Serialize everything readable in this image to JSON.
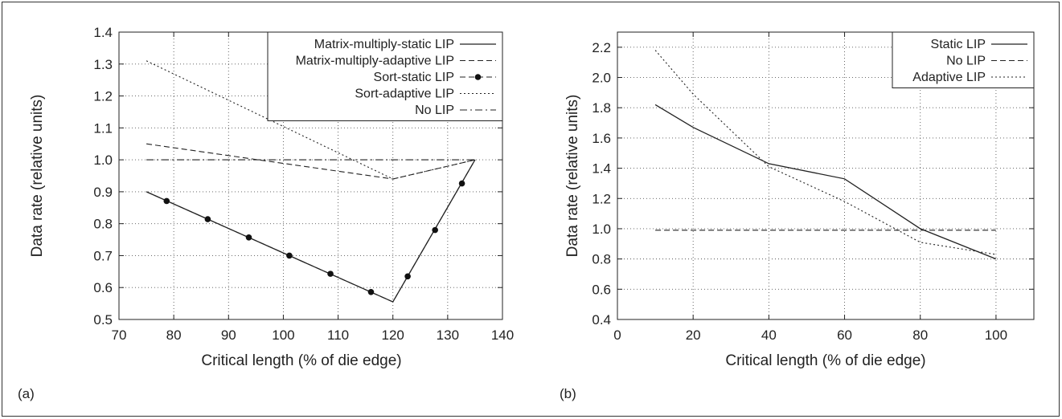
{
  "chart_data": [
    {
      "id": "a",
      "type": "line",
      "panel_label": "(a)",
      "xlabel": "Critical length (% of die edge)",
      "ylabel": "Data rate (relative units)",
      "xlim": [
        70,
        140
      ],
      "ylim": [
        0.5,
        1.4
      ],
      "xticks": [
        70,
        80,
        90,
        100,
        110,
        120,
        130,
        140
      ],
      "yticks": [
        0.5,
        0.6,
        0.7,
        0.8,
        0.9,
        1.0,
        1.1,
        1.2,
        1.3,
        1.4
      ],
      "ytick_labels": [
        "0.5",
        "0.6",
        "0.7",
        "0.8",
        "0.9",
        "1.0",
        "1.1",
        "1.2",
        "1.3",
        "1.4"
      ],
      "grid": true,
      "legend_position": "top-right",
      "series": [
        {
          "name": "Matrix-multiply-static LIP",
          "style": "solid",
          "markers": false,
          "x": [
            75,
            120,
            135
          ],
          "y": [
            0.9,
            0.555,
            1.0
          ]
        },
        {
          "name": "Matrix-multiply-adaptive LIP",
          "style": "dashed",
          "markers": false,
          "x": [
            75,
            120,
            135
          ],
          "y": [
            1.05,
            0.94,
            1.0
          ]
        },
        {
          "name": "Sort-static LIP",
          "style": "dashed",
          "markers": true,
          "x": [
            75,
            120,
            135
          ],
          "y": [
            0.9,
            0.555,
            1.0
          ],
          "marker_x": [
            78.7,
            86.2,
            93.7,
            101.1,
            108.6,
            116.0,
            122.7,
            127.7,
            132.6
          ],
          "marker_y": [
            0.871,
            0.814,
            0.757,
            0.7,
            0.643,
            0.586,
            0.635,
            0.78,
            0.926
          ]
        },
        {
          "name": "Sort-adaptive LIP",
          "style": "dotted",
          "markers": false,
          "x": [
            75,
            120,
            135
          ],
          "y": [
            1.31,
            0.94,
            1.0
          ]
        },
        {
          "name": "No LIP",
          "style": "dashdot",
          "markers": false,
          "x": [
            75,
            135
          ],
          "y": [
            1.0,
            1.0
          ]
        }
      ]
    },
    {
      "id": "b",
      "type": "line",
      "panel_label": "(b)",
      "xlabel": "Critical length (% of die edge)",
      "ylabel": "Data rate (relative units)",
      "xlim": [
        0,
        110
      ],
      "ylim": [
        0.4,
        2.3
      ],
      "xticks": [
        0,
        20,
        40,
        60,
        80,
        100
      ],
      "yticks": [
        0.4,
        0.6,
        0.8,
        1.0,
        1.2,
        1.4,
        1.6,
        1.8,
        2.0,
        2.2
      ],
      "ytick_labels": [
        "0.4",
        "0.6",
        "0.8",
        "1.0",
        "1.2",
        "1.4",
        "1.6",
        "1.8",
        "2.0",
        "2.2"
      ],
      "grid": true,
      "legend_position": "top-right",
      "series": [
        {
          "name": "Static LIP",
          "style": "solid",
          "markers": false,
          "x": [
            10,
            20,
            40,
            60,
            80,
            100
          ],
          "y": [
            1.82,
            1.67,
            1.43,
            1.33,
            1.0,
            0.8
          ]
        },
        {
          "name": "No LIP",
          "style": "dashed",
          "markers": false,
          "x": [
            10,
            100
          ],
          "y": [
            0.99,
            0.99
          ]
        },
        {
          "name": "Adaptive LIP",
          "style": "dotted",
          "markers": false,
          "x": [
            10,
            20,
            40,
            60,
            80,
            100
          ],
          "y": [
            2.18,
            1.89,
            1.41,
            1.18,
            0.91,
            0.83
          ]
        }
      ]
    }
  ]
}
